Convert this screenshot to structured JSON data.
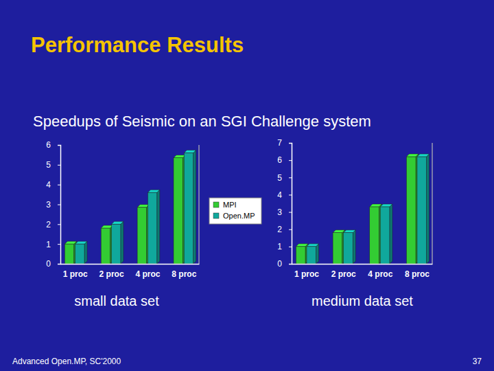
{
  "title": "Performance Results",
  "subtitle": "Speedups of Seismic on an SGI Challenge system",
  "footer": "Advanced Open.MP, SC'2000",
  "page": "37",
  "chart_data": [
    {
      "type": "bar",
      "xlabel": "small data set",
      "categories": [
        "1 proc",
        "2 proc",
        "4 proc",
        "8 proc"
      ],
      "series": [
        {
          "name": "MPI",
          "color": "#33cc33",
          "values": [
            1.0,
            1.8,
            2.85,
            5.35
          ]
        },
        {
          "name": "Open.MP",
          "color": "#10a89c",
          "values": [
            1.0,
            2.0,
            3.6,
            5.6
          ]
        }
      ],
      "ylim": [
        0,
        6
      ],
      "yticks": [
        0,
        1,
        2,
        3,
        4,
        5,
        6
      ],
      "grid": false,
      "legend": "right"
    },
    {
      "type": "bar",
      "xlabel": "medium data set",
      "categories": [
        "1 proc",
        "2 proc",
        "4 proc",
        "8 proc"
      ],
      "series": [
        {
          "name": "MPI",
          "color": "#33cc33",
          "values": [
            1.0,
            1.8,
            3.3,
            6.2
          ]
        },
        {
          "name": "Open.MP",
          "color": "#10a89c",
          "values": [
            1.0,
            1.8,
            3.3,
            6.2
          ]
        }
      ],
      "ylim": [
        0,
        7
      ],
      "yticks": [
        0,
        1,
        2,
        3,
        4,
        5,
        6,
        7
      ],
      "grid": false
    }
  ]
}
